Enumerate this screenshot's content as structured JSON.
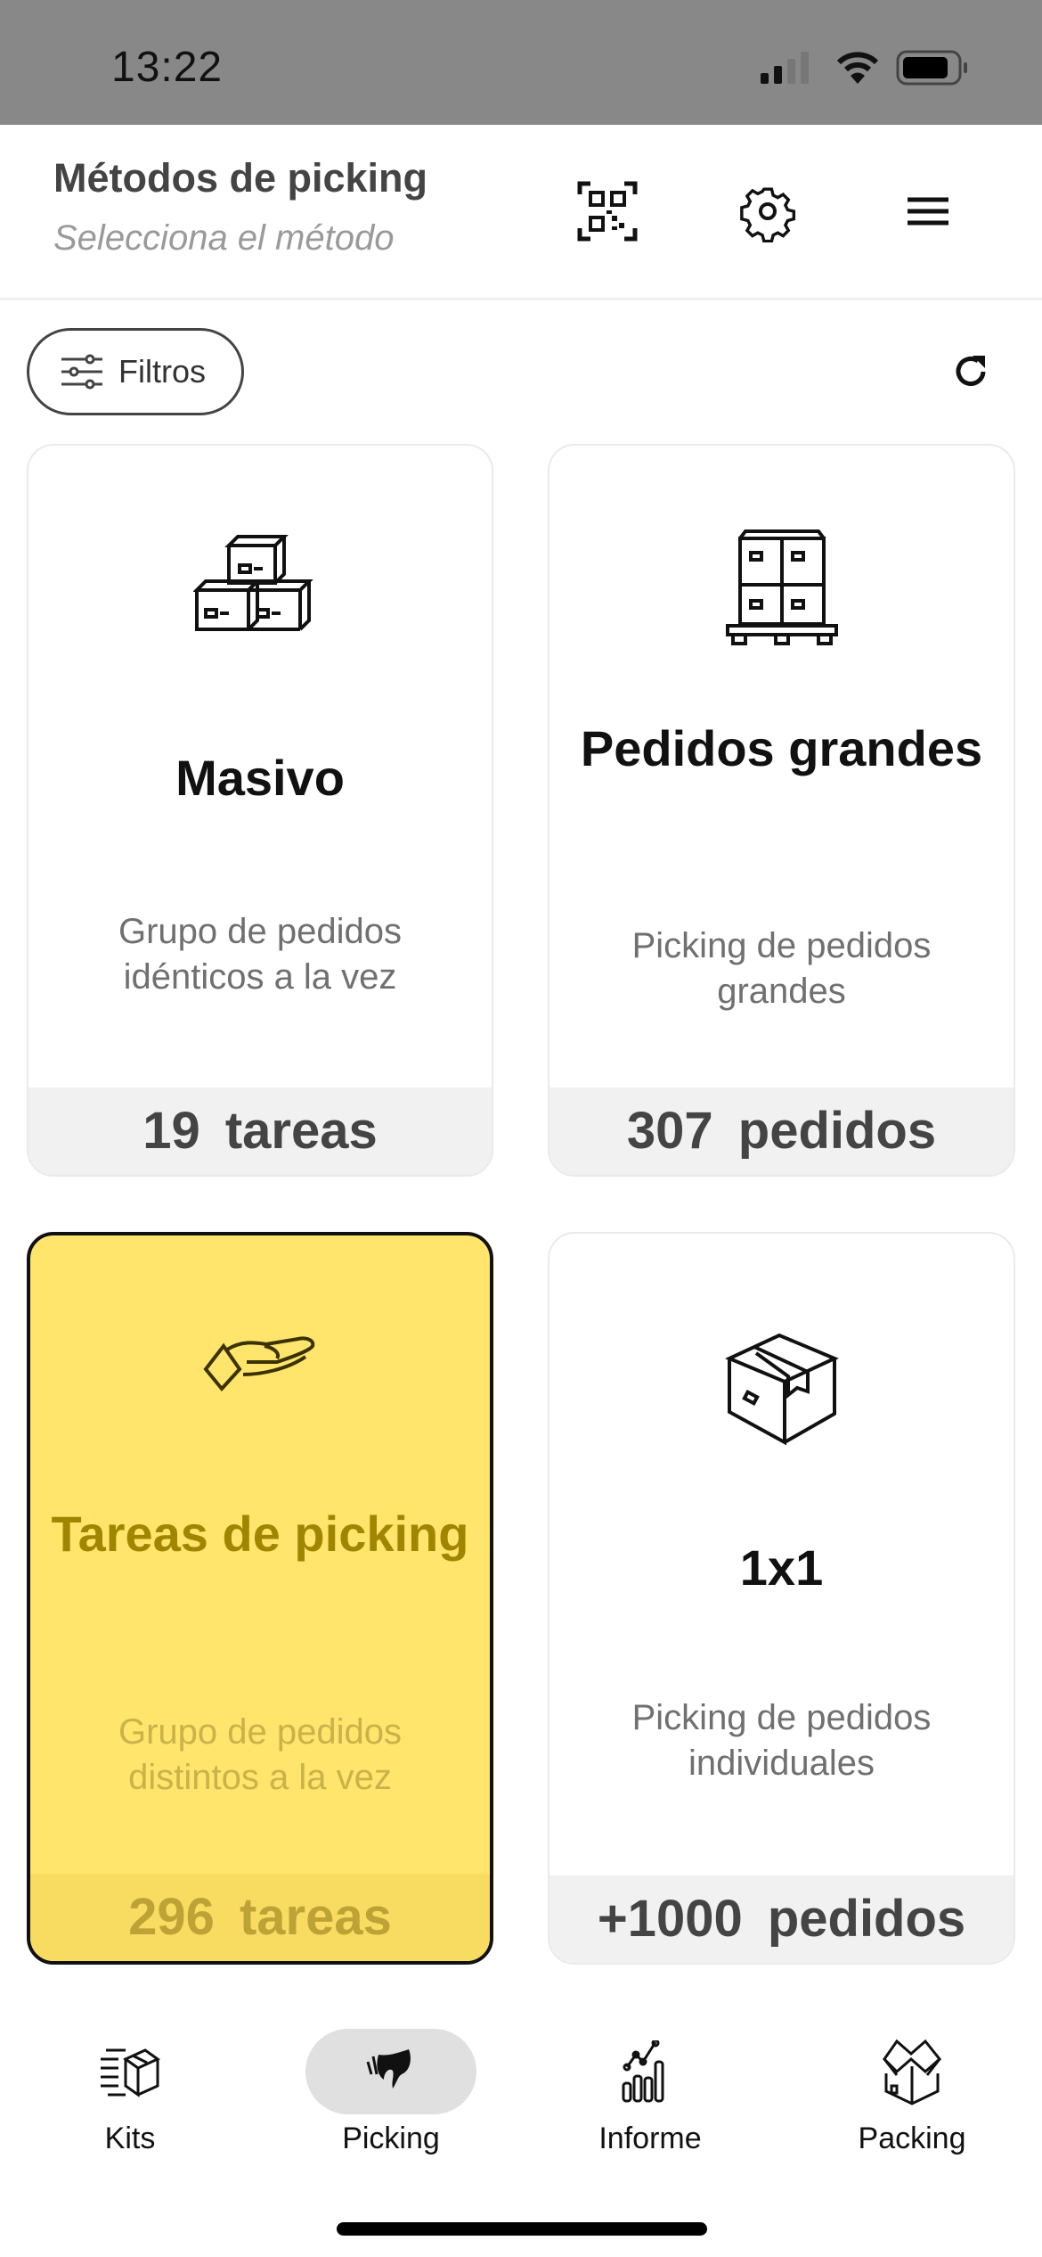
{
  "status_bar": {
    "time": "13:22"
  },
  "header": {
    "title": "Métodos de picking",
    "subtitle": "Selecciona el método"
  },
  "toolbar": {
    "filters_label": "Filtros"
  },
  "cards": [
    {
      "title": "Masivo",
      "description": "Grupo de pedidos idénticos a la vez",
      "count": "19 tareas",
      "icon": "stacked-boxes-icon",
      "selected": false
    },
    {
      "title": "Pedidos grandes",
      "description": "Picking de pedidos grandes",
      "count": "307 pedidos",
      "icon": "pallet-icon",
      "selected": false
    },
    {
      "title": "Tareas de picking",
      "description": "Grupo de pedidos distintos a la vez",
      "count": "296 tareas",
      "icon": "hand-icon",
      "selected": true
    },
    {
      "title": "1x1",
      "description": "Picking de pedidos individuales",
      "count": "+1000 pedidos",
      "icon": "box-icon",
      "selected": false
    }
  ],
  "tabs": [
    {
      "label": "Kits"
    },
    {
      "label": "Picking",
      "active": true
    },
    {
      "label": "Informe"
    },
    {
      "label": "Packing"
    }
  ],
  "colors": {
    "selected_card": "#FFE56C",
    "status_bar": "#888888"
  }
}
